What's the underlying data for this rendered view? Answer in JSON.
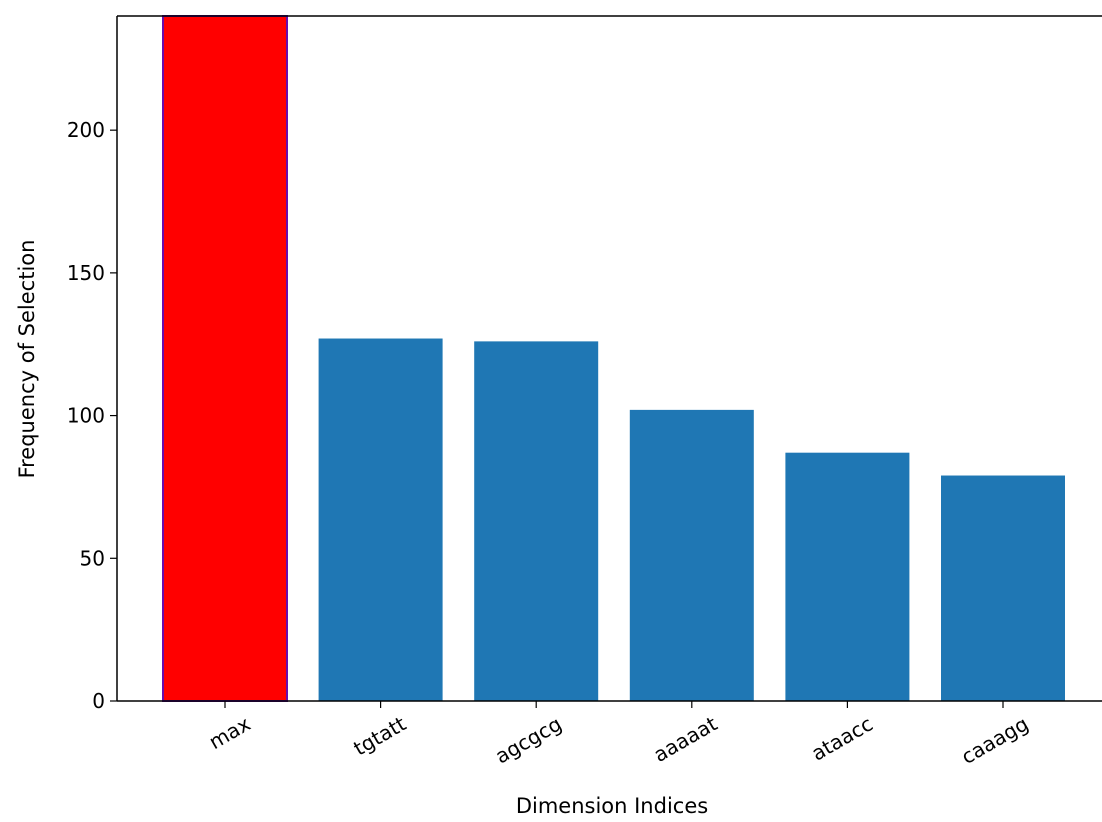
{
  "chart_data": {
    "type": "bar",
    "title": "",
    "xlabel": "Dimension Indices",
    "ylabel": "Frequency of Selection",
    "categories": [
      "max",
      "tgtatt",
      "agcgcg",
      "aaaaat",
      "ataacc",
      "caaagg"
    ],
    "values": [
      240,
      127,
      126,
      102,
      87,
      79
    ],
    "colors": [
      "#ff0000",
      "#1f77b4",
      "#1f77b4",
      "#1f77b4",
      "#1f77b4",
      "#1f77b4"
    ],
    "highlight_edge_color": "#6a0dad",
    "ylim": [
      0,
      240
    ],
    "yticks": [
      0,
      50,
      100,
      150,
      200
    ],
    "grid": false,
    "x_tick_rotation": "30 degrees"
  }
}
